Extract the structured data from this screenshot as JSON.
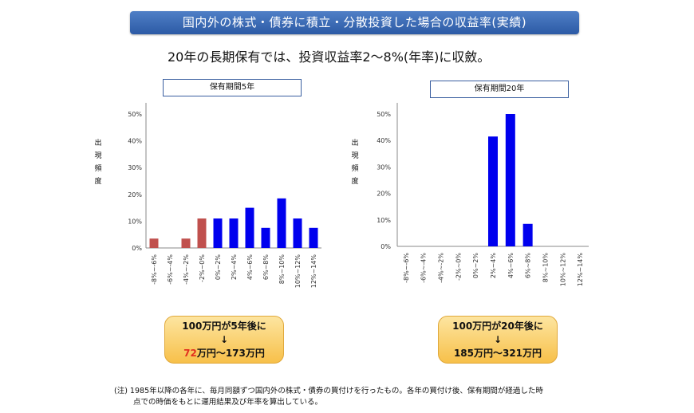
{
  "banner": "国内外の株式・債券に積立・分散投資した場合の収益率(実績)",
  "subtitle": "20年の長期保有では、投資収益率2〜8%(年率)に収斂。",
  "y_label_chars": [
    "出",
    "現",
    "頻",
    "度"
  ],
  "results": [
    {
      "line1": "100万円が5年後に",
      "arrow": "↓",
      "line3_red": "72",
      "line3_rest": "万円〜173万円"
    },
    {
      "line1": "100万円が20年後に",
      "arrow": "↓",
      "line3_red": "",
      "line3_rest": "185万円〜321万円"
    }
  ],
  "note_line1": "(注) 1985年以降の各年に、毎月同額ずつ国内外の株式・債券の買付けを行ったもの。各年の買付け後、保有期間が経過した時",
  "note_line2": "点での時価をもとに運用結果及び年率を算出している。",
  "colors": {
    "loss": "#c0504d",
    "gain": "#0000ee",
    "banner": "#3466b4",
    "axis": "#888888"
  },
  "chart_data": [
    {
      "type": "bar",
      "title": "保有期間5年",
      "ylabel": "出現頻度",
      "categories": [
        "-8%~-6%",
        "-6%~-4%",
        "-4%~-2%",
        "-2%~0%",
        "0%~2%",
        "2%~4%",
        "4%~6%",
        "6%~8%",
        "8%~10%",
        "10%~12%",
        "12%~14%"
      ],
      "values": [
        3.5,
        0,
        3.5,
        11,
        11,
        11,
        15,
        7.5,
        18.5,
        11,
        7.5
      ],
      "ylim": [
        0,
        50
      ],
      "yticks": [
        "0%",
        "10%",
        "20%",
        "30%",
        "40%",
        "50%"
      ],
      "grid": false
    },
    {
      "type": "bar",
      "title": "保有期間20年",
      "ylabel": "出現頻度",
      "categories": [
        "-8%~-6%",
        "-6%~-4%",
        "-4%~-2%",
        "-2%~0%",
        "0%~2%",
        "2%~4%",
        "4%~6%",
        "6%~8%",
        "8%~10%",
        "10%~12%",
        "12%~14%"
      ],
      "values": [
        0,
        0,
        0,
        0,
        0,
        41.5,
        50,
        8.5,
        0,
        0,
        0
      ],
      "ylim": [
        0,
        50
      ],
      "yticks": [
        "0%",
        "10%",
        "20%",
        "30%",
        "40%",
        "50%"
      ],
      "grid": false
    }
  ]
}
